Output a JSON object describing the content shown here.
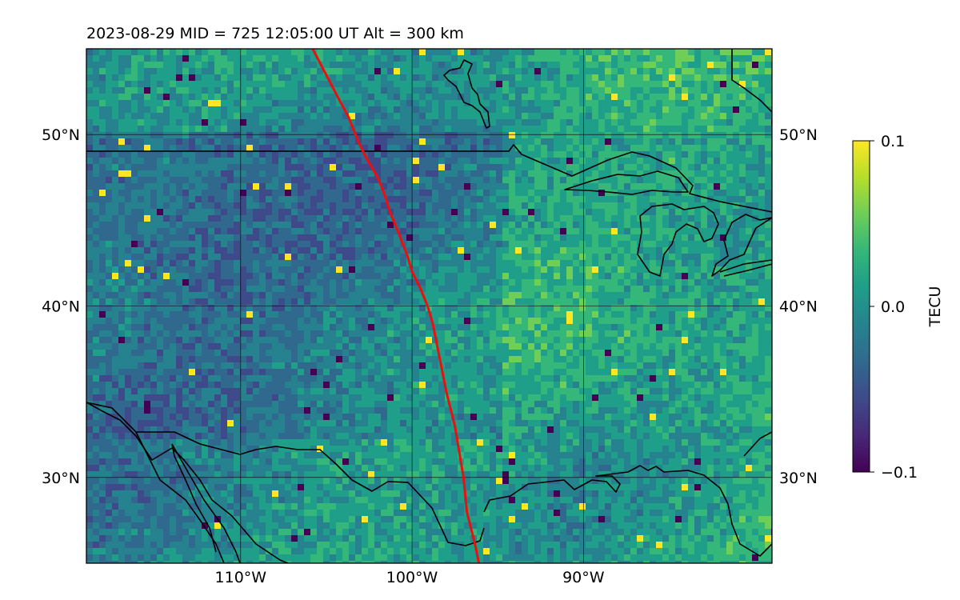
{
  "title": "2023-08-29  MID = 725    12:05:00  UT  Alt = 300 km",
  "map": {
    "lon_range": [
      -119,
      -79
    ],
    "lat_range": [
      25,
      55
    ],
    "lat_ticks": [
      {
        "value": 50,
        "label": "50°N"
      },
      {
        "value": 40,
        "label": "40°N"
      },
      {
        "value": 30,
        "label": "30°N"
      }
    ],
    "lon_ticks": [
      {
        "value": -110,
        "label": "110°W"
      },
      {
        "value": -100,
        "label": "100°W"
      },
      {
        "value": -90,
        "label": "90°W"
      }
    ],
    "terminator_color": "#e8110f",
    "terminator": [
      [
        -105.8,
        55
      ],
      [
        -104.5,
        52.5
      ],
      [
        -103.7,
        51
      ],
      [
        -103.1,
        49.5
      ],
      [
        -102.6,
        48.5
      ],
      [
        -102.0,
        47.5
      ],
      [
        -101.6,
        46.5
      ],
      [
        -101.3,
        45.5
      ],
      [
        -100.8,
        44.3
      ],
      [
        -100.3,
        43
      ],
      [
        -100.0,
        42
      ],
      [
        -99.5,
        41
      ],
      [
        -99.1,
        40
      ],
      [
        -98.8,
        39
      ],
      [
        -98.4,
        37
      ],
      [
        -98.0,
        35
      ],
      [
        -97.5,
        33
      ],
      [
        -97.0,
        30
      ],
      [
        -96.8,
        28
      ],
      [
        -96.3,
        26
      ],
      [
        -96.1,
        25
      ]
    ]
  },
  "colorbar": {
    "label": "TECU",
    "min": -0.1,
    "max": 0.1,
    "ticks": [
      {
        "value": 0.1,
        "label": "0.1"
      },
      {
        "value": 0.0,
        "label": "0.0"
      },
      {
        "value": -0.1,
        "label": "−0.1"
      }
    ]
  },
  "colors": {
    "viridis": [
      "#440154",
      "#482878",
      "#3e4a89",
      "#31688e",
      "#26828e",
      "#1f9e89",
      "#35b779",
      "#6ece58",
      "#b5de2b",
      "#fde725"
    ]
  }
}
